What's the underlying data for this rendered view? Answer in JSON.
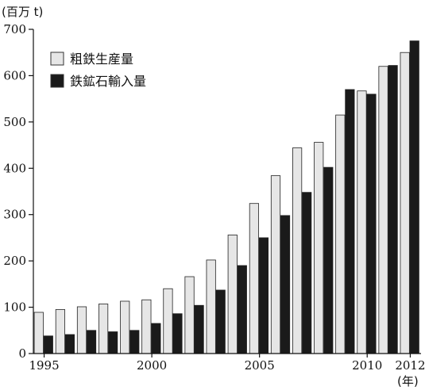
{
  "chart_data": {
    "type": "bar",
    "title": "",
    "ylabel": "(百万 t)",
    "xlabel": "(年)",
    "ylim": [
      0,
      700
    ],
    "yticks": [
      0,
      100,
      200,
      300,
      400,
      500,
      600,
      700
    ],
    "grid": false,
    "legend_position": "top-left",
    "categories": [
      "1995",
      "1996",
      "1997",
      "1998",
      "1999",
      "2000",
      "2001",
      "2002",
      "2003",
      "2004",
      "2005",
      "2006",
      "2007",
      "2008",
      "2009",
      "2010",
      "2011",
      "2012"
    ],
    "x_tick_labels": [
      "1995",
      "2000",
      "2005",
      "2010",
      "2012"
    ],
    "series": [
      {
        "name": "粗鉄生産量",
        "color": "#e6e6e6",
        "values": [
          89,
          95,
          101,
          107,
          113,
          116,
          140,
          166,
          202,
          256,
          324,
          384,
          444,
          456,
          515,
          567,
          620,
          650
        ]
      },
      {
        "name": "鉄鉱石輸入量",
        "color": "#1a1a1a",
        "values": [
          38,
          41,
          50,
          47,
          50,
          65,
          86,
          104,
          137,
          190,
          250,
          298,
          348,
          402,
          570,
          560,
          622,
          675
        ]
      }
    ]
  }
}
